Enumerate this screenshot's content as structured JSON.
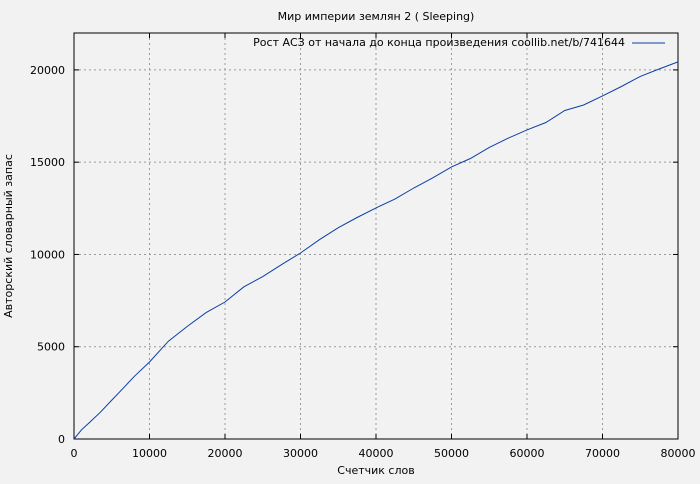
{
  "chart_data": {
    "type": "line",
    "title": "Мир империи землян 2 ( Sleeping)",
    "xlabel": "Счетчик слов",
    "ylabel": "Авторский словарный запас",
    "xlim": [
      0,
      80000
    ],
    "ylim": [
      0,
      22000
    ],
    "xticks": [
      0,
      10000,
      20000,
      30000,
      40000,
      50000,
      60000,
      70000,
      80000
    ],
    "yticks": [
      0,
      5000,
      10000,
      15000,
      20000
    ],
    "grid": true,
    "legend_position": "top-right",
    "series": [
      {
        "name": "Рост АСЗ от начала до конца произведения coollib.net/b/741644",
        "color": "#0b3fa8",
        "x": [
          0,
          1000,
          2000,
          3500,
          5000,
          6500,
          8000,
          10000,
          12500,
          15000,
          17500,
          20000,
          22500,
          25000,
          27500,
          30000,
          32500,
          35000,
          37500,
          40000,
          42500,
          45000,
          47500,
          50000,
          52500,
          55000,
          57500,
          60000,
          62500,
          65000,
          67500,
          70000,
          72500,
          75000,
          77500,
          80000
        ],
        "y": [
          0,
          500,
          870,
          1450,
          2110,
          2750,
          3400,
          4170,
          5300,
          6100,
          6850,
          7425,
          8250,
          8800,
          9450,
          10081,
          10800,
          11450,
          12000,
          12520,
          13000,
          13600,
          14150,
          14742,
          15200,
          15800,
          16300,
          16748,
          17150,
          17800,
          18100,
          18590,
          19100,
          19650,
          20050,
          20433
        ]
      }
    ]
  }
}
